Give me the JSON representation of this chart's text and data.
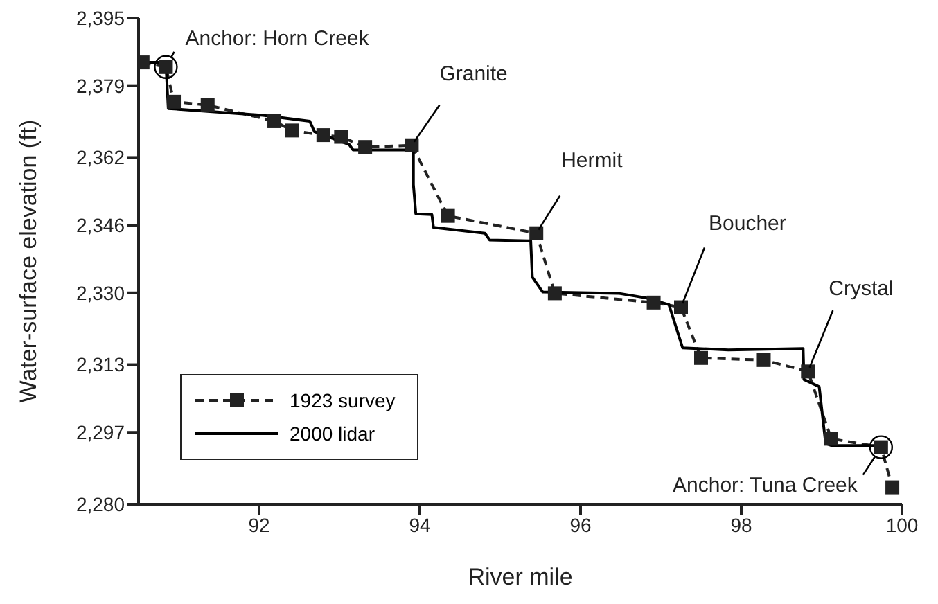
{
  "chart_data": {
    "type": "line",
    "xlabel": "River mile",
    "ylabel": "Water-surface elevation (ft)",
    "xlim": [
      90.5,
      100
    ],
    "xticks": [
      92,
      94,
      96,
      98,
      100
    ],
    "ylim": [
      2280,
      2395
    ],
    "yticks": [
      {
        "value": 2280,
        "label": "2,280"
      },
      {
        "value": 2297,
        "label": "2,297"
      },
      {
        "value": 2313,
        "label": "2,313"
      },
      {
        "value": 2330,
        "label": "2,330"
      },
      {
        "value": 2346,
        "label": "2,346"
      },
      {
        "value": 2362,
        "label": "2,362"
      },
      {
        "value": 2379,
        "label": "2,379"
      },
      {
        "value": 2395,
        "label": "2,395"
      }
    ],
    "legend": "bottom left",
    "series": [
      {
        "name": "1923 survey",
        "color": "#222222",
        "marker": "square",
        "line_style": "dashed",
        "x": [
          90.55,
          90.84,
          90.94,
          91.36,
          92.19,
          92.41,
          92.8,
          93.02,
          93.32,
          93.9,
          94.35,
          95.45,
          95.68,
          96.91,
          97.25,
          97.5,
          98.28,
          98.83,
          99.12,
          99.74,
          99.88
        ],
        "values": [
          2384.5,
          2383.4,
          2375.2,
          2374.4,
          2370.6,
          2368.4,
          2367.3,
          2366.9,
          2364.5,
          2364.9,
          2348.2,
          2344.1,
          2329.9,
          2327.7,
          2326.6,
          2314.6,
          2314.1,
          2311.4,
          2295.5,
          2293.5,
          2284
        ]
      },
      {
        "name": "2000 lidar",
        "color": "#000000",
        "marker": "none",
        "line_style": "solid",
        "x": [
          90.55,
          90.84,
          90.87,
          92.05,
          92.63,
          92.69,
          93.12,
          93.17,
          93.92,
          93.92,
          93.95,
          94.15,
          94.17,
          94.81,
          94.87,
          95.38,
          95.4,
          95.53,
          96.47,
          96.82,
          97.1,
          97.27,
          97.84,
          98.77,
          98.78,
          98.97,
          99.05,
          99.12,
          99.72
        ],
        "values": [
          2384.5,
          2384.5,
          2373.6,
          2372,
          2370.6,
          2368.1,
          2365.1,
          2363.8,
          2363.8,
          2355.6,
          2348.7,
          2348.5,
          2345.5,
          2344.1,
          2342.5,
          2342.3,
          2333.7,
          2330.2,
          2329.9,
          2328.8,
          2327.2,
          2317,
          2316.5,
          2316.8,
          2309.5,
          2307.8,
          2294.4,
          2293.9,
          2293.9
        ]
      }
    ],
    "annotations": [
      {
        "text": "Anchor: Horn Creek",
        "x": 90.84,
        "y": 2383.4
      },
      {
        "text": "Granite",
        "x": 93.9,
        "y": 2364.9
      },
      {
        "text": "Hermit",
        "x": 95.45,
        "y": 2344.1
      },
      {
        "text": "Boucher",
        "x": 97.25,
        "y": 2326.6
      },
      {
        "text": "Crystal",
        "x": 98.83,
        "y": 2311.4
      },
      {
        "text": "Anchor: Tuna Creek",
        "x": 99.74,
        "y": 2293.5
      }
    ]
  }
}
